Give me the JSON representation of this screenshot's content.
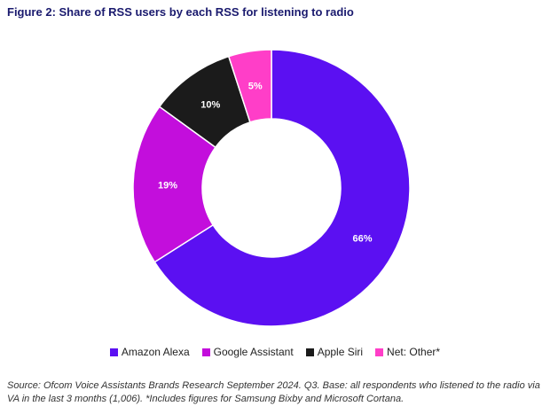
{
  "title": "Figure 2: Share of RSS users by each RSS for listening to radio",
  "chart_data": {
    "type": "pie",
    "subtype": "donut",
    "categories": [
      "Amazon Alexa",
      "Google Assistant",
      "Apple Siri",
      "Net: Other*"
    ],
    "values": [
      66,
      19,
      10,
      5
    ],
    "labels": [
      "66%",
      "19%",
      "10%",
      "5%"
    ],
    "colors": [
      "#5b10f2",
      "#c30edc",
      "#1b1b1b",
      "#ff3ec8"
    ],
    "label_colors": [
      "#ffffff",
      "#ffffff",
      "#ffffff",
      "#ffffff"
    ],
    "legend": "bottom",
    "start": "top, clockwise"
  },
  "source": "Source: Ofcom Voice Assistants Brands Research September 2024. Q3. Base: all respondents who listened to the radio via VA in the last 3 months (1,006). *Includes figures for Samsung Bixby and Microsoft Cortana."
}
